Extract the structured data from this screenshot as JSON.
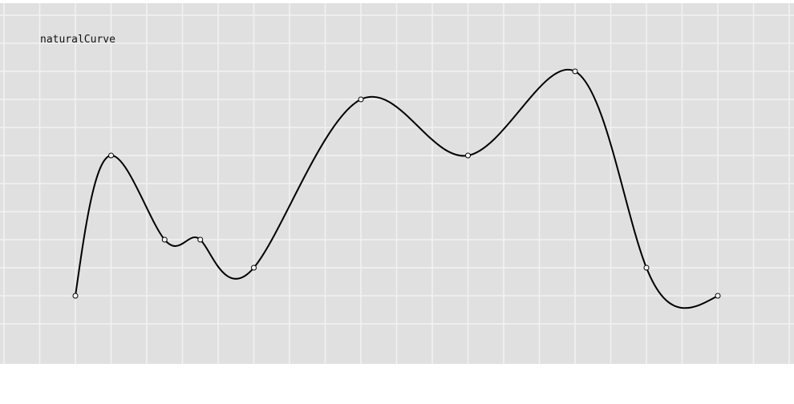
{
  "chart_data": {
    "type": "line",
    "title": "naturalCurve",
    "xlabel": "",
    "ylabel": "",
    "grid": true,
    "xlim": [
      -1,
      21
    ],
    "ylim": [
      0,
      10
    ],
    "series": [
      {
        "interpolation": "natural",
        "points": [
          {
            "x": 1,
            "y": 1
          },
          {
            "x": 2,
            "y": 6
          },
          {
            "x": 3.5,
            "y": 3
          },
          {
            "x": 4.5,
            "y": 3
          },
          {
            "x": 6,
            "y": 2
          },
          {
            "x": 9,
            "y": 8
          },
          {
            "x": 12,
            "y": 6
          },
          {
            "x": 15,
            "y": 9
          },
          {
            "x": 17,
            "y": 2
          },
          {
            "x": 19,
            "y": 1
          }
        ]
      }
    ]
  },
  "colors": {
    "background": "#e0e0e0",
    "grid": "#f2f2f2",
    "line": "#000000",
    "marker_fill": "#ffffff"
  }
}
